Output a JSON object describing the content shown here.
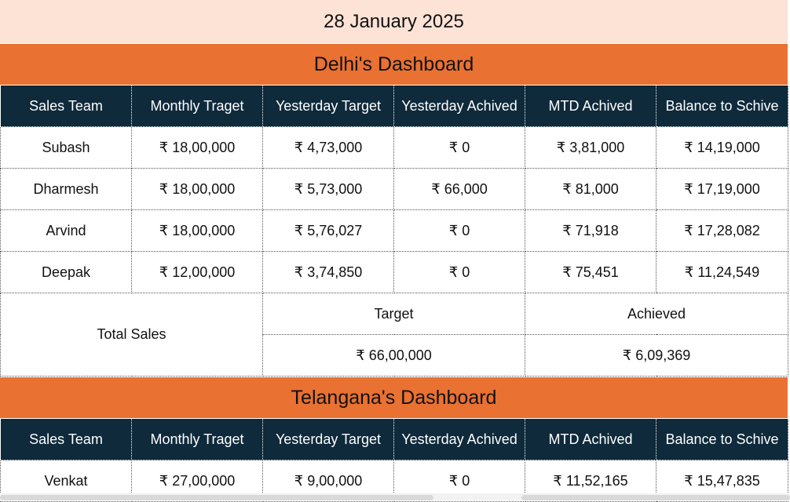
{
  "date": "28 January 2025",
  "headers": [
    "Sales Team",
    "Monthly Traget",
    "Yesterday Target",
    "Yesterday Achived",
    "MTD Achived",
    "Balance to Schive"
  ],
  "delhi": {
    "title": "Delhi's Dashboard",
    "rows": [
      [
        "Subash",
        "₹ 18,00,000",
        "₹ 4,73,000",
        "₹ 0",
        "₹ 3,81,000",
        "₹ 14,19,000"
      ],
      [
        "Dharmesh",
        "₹ 18,00,000",
        "₹ 5,73,000",
        "₹ 66,000",
        "₹ 81,000",
        "₹ 17,19,000"
      ],
      [
        "Arvind",
        "₹ 18,00,000",
        "₹ 5,76,027",
        "₹ 0",
        "₹ 71,918",
        "₹ 17,28,082"
      ],
      [
        "Deepak",
        "₹ 12,00,000",
        "₹ 3,74,850",
        "₹ 0",
        "₹ 75,451",
        "₹ 11,24,549"
      ]
    ],
    "total": {
      "label": "Total Sales",
      "target_label": "Target",
      "achieved_label": "Achieved",
      "target_value": "₹ 66,00,000",
      "achieved_value": "₹ 6,09,369"
    }
  },
  "telangana": {
    "title": "Telangana's Dashboard",
    "rows": [
      [
        "Venkat",
        "₹ 27,00,000",
        "₹ 9,00,000",
        "₹ 0",
        "₹ 11,52,165",
        "₹ 15,47,835"
      ]
    ]
  }
}
